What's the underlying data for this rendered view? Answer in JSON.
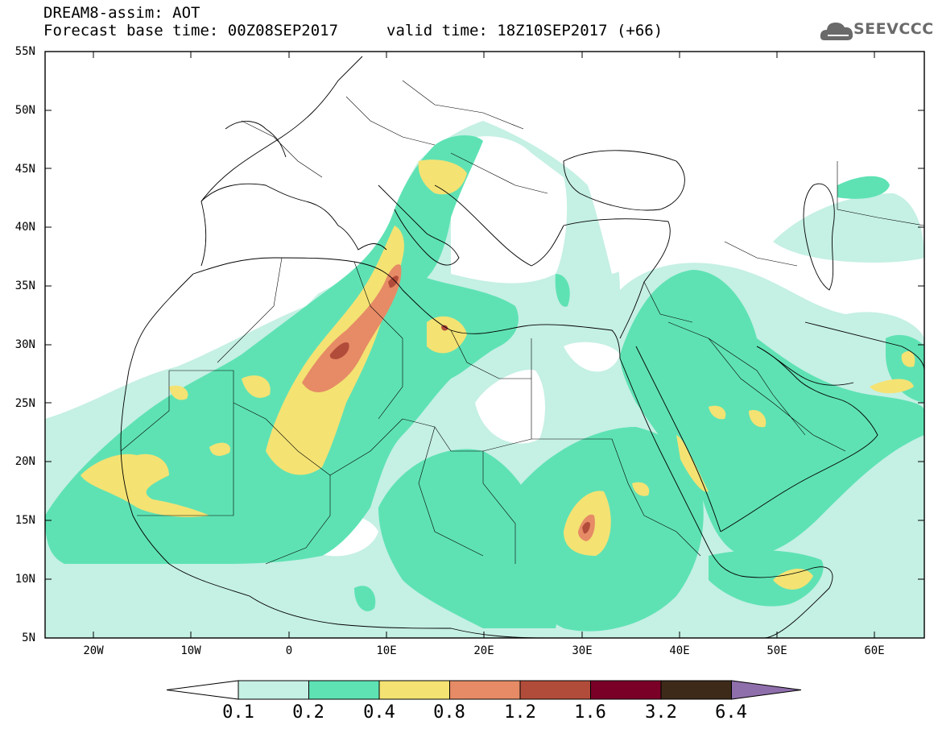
{
  "header": {
    "line1": "DREAM8-assim: AOT",
    "line2": "Forecast base time: 00Z08SEP2017",
    "valid": "valid time: 18Z10SEP2017 (+66)",
    "logo_text": "SEEVCCC",
    "logo_icon": "cloud-icon"
  },
  "axes": {
    "lat_labels": [
      "55N",
      "50N",
      "45N",
      "40N",
      "35N",
      "30N",
      "25N",
      "20N",
      "15N",
      "10N",
      "5N"
    ],
    "lon_labels": [
      "20W",
      "10W",
      "0",
      "10E",
      "20E",
      "30E",
      "40E",
      "50E",
      "60E"
    ]
  },
  "colorbar": {
    "labels": [
      "0.1",
      "0.2",
      "0.4",
      "0.8",
      "1.2",
      "1.6",
      "3.2",
      "6.4"
    ],
    "colors": [
      "#ffffff",
      "#c5f0e4",
      "#5ee2b4",
      "#f4e273",
      "#e68b66",
      "#b24c3a",
      "#7a0028",
      "#3d2a18",
      "#8f6fab"
    ]
  },
  "map": {
    "variable": "AOT",
    "region": "North Africa, Middle East and Mediterranean",
    "color_scale_levels": [
      0.1,
      0.2,
      0.4,
      0.8,
      1.2,
      1.6,
      3.2,
      6.4
    ]
  }
}
